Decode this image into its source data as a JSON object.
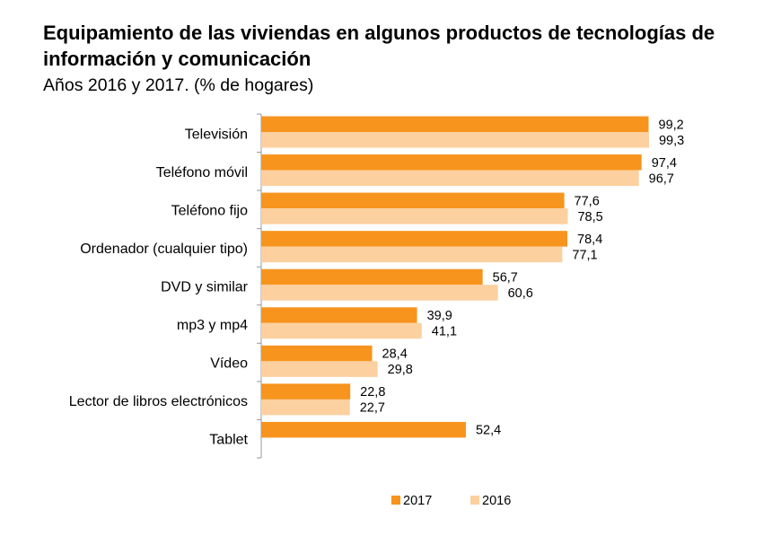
{
  "title": "Equipamiento de las viviendas en algunos productos de tecnologías de información y comunicación",
  "subtitle": "Años 2016 y 2017. (% de hogares)",
  "chart_data": {
    "type": "bar",
    "orientation": "horizontal",
    "categories": [
      "Televisión",
      "Teléfono móvil",
      "Teléfono fijo",
      "Ordenador (cualquier tipo)",
      "DVD y similar",
      "mp3 y mp4",
      "Vídeo",
      "Lector de libros electrónicos",
      "Tablet"
    ],
    "series": [
      {
        "name": "2017",
        "color": "#f7941d",
        "values": [
          99.2,
          97.4,
          77.6,
          78.4,
          56.7,
          39.9,
          28.4,
          22.8,
          52.4
        ],
        "labels": [
          "99,2",
          "97,4",
          "77,6",
          "78,4",
          "56,7",
          "39,9",
          "28,4",
          "22,8",
          "52,4"
        ]
      },
      {
        "name": "2016",
        "color": "#fcd09f",
        "values": [
          99.3,
          96.7,
          78.5,
          77.1,
          60.6,
          41.1,
          29.8,
          22.7,
          null
        ],
        "labels": [
          "99,3",
          "96,7",
          "78,5",
          "77,1",
          "60,6",
          "41,1",
          "29,8",
          "22,7",
          ""
        ]
      }
    ],
    "xlim": [
      0,
      100
    ],
    "grid": false,
    "legend_position": "bottom"
  }
}
